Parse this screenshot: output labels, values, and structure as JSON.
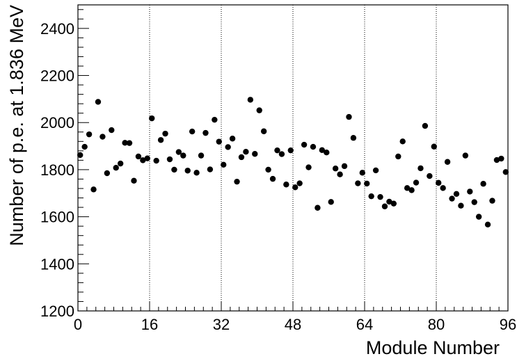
{
  "chart_data": {
    "type": "scatter",
    "xlabel": "Module Number",
    "ylabel": "Number of p.e. at 1.836 MeV",
    "xlim": [
      0,
      96
    ],
    "ylim": [
      1200,
      2500
    ],
    "x_ticks": [
      "0",
      "16",
      "32",
      "48",
      "64",
      "80",
      "96"
    ],
    "y_ticks": [
      "1200",
      "1400",
      "1600",
      "1800",
      "2000",
      "2200",
      "2400"
    ],
    "vertical_gridlines": [
      16,
      32,
      48,
      64,
      80
    ],
    "grid": "vertical dotted lines at x tick positions",
    "marker_color": "#000000",
    "points": [
      {
        "x": 0.5,
        "y": 1862
      },
      {
        "x": 1.5,
        "y": 1897
      },
      {
        "x": 2.5,
        "y": 1950
      },
      {
        "x": 3.5,
        "y": 1716
      },
      {
        "x": 4.5,
        "y": 2088
      },
      {
        "x": 5.5,
        "y": 1940
      },
      {
        "x": 6.5,
        "y": 1785
      },
      {
        "x": 7.5,
        "y": 1968
      },
      {
        "x": 8.5,
        "y": 1808
      },
      {
        "x": 9.5,
        "y": 1826
      },
      {
        "x": 10.5,
        "y": 1914
      },
      {
        "x": 11.5,
        "y": 1913
      },
      {
        "x": 12.5,
        "y": 1753
      },
      {
        "x": 13.5,
        "y": 1856
      },
      {
        "x": 14.5,
        "y": 1840
      },
      {
        "x": 15.5,
        "y": 1848
      },
      {
        "x": 16.5,
        "y": 2018
      },
      {
        "x": 17.5,
        "y": 1838
      },
      {
        "x": 18.5,
        "y": 1926
      },
      {
        "x": 19.5,
        "y": 1953
      },
      {
        "x": 20.5,
        "y": 1844
      },
      {
        "x": 21.5,
        "y": 1800
      },
      {
        "x": 22.5,
        "y": 1875
      },
      {
        "x": 23.5,
        "y": 1860
      },
      {
        "x": 24.5,
        "y": 1796
      },
      {
        "x": 25.5,
        "y": 1962
      },
      {
        "x": 26.5,
        "y": 1787
      },
      {
        "x": 27.5,
        "y": 1860
      },
      {
        "x": 28.5,
        "y": 1956
      },
      {
        "x": 29.5,
        "y": 1801
      },
      {
        "x": 30.5,
        "y": 2012
      },
      {
        "x": 31.5,
        "y": 1919
      },
      {
        "x": 32.5,
        "y": 1821
      },
      {
        "x": 33.5,
        "y": 1896
      },
      {
        "x": 34.5,
        "y": 1932
      },
      {
        "x": 35.5,
        "y": 1749
      },
      {
        "x": 36.5,
        "y": 1853
      },
      {
        "x": 37.5,
        "y": 1876
      },
      {
        "x": 38.5,
        "y": 2097
      },
      {
        "x": 39.5,
        "y": 1867
      },
      {
        "x": 40.5,
        "y": 2052
      },
      {
        "x": 41.5,
        "y": 1963
      },
      {
        "x": 42.5,
        "y": 1800
      },
      {
        "x": 43.5,
        "y": 1761
      },
      {
        "x": 44.5,
        "y": 1882
      },
      {
        "x": 45.5,
        "y": 1866
      },
      {
        "x": 46.5,
        "y": 1737
      },
      {
        "x": 47.5,
        "y": 1882
      },
      {
        "x": 48.5,
        "y": 1725
      },
      {
        "x": 49.5,
        "y": 1742
      },
      {
        "x": 50.5,
        "y": 1906
      },
      {
        "x": 51.5,
        "y": 1810
      },
      {
        "x": 52.5,
        "y": 1897
      },
      {
        "x": 53.5,
        "y": 1638
      },
      {
        "x": 54.5,
        "y": 1883
      },
      {
        "x": 55.5,
        "y": 1873
      },
      {
        "x": 56.5,
        "y": 1663
      },
      {
        "x": 57.5,
        "y": 1805
      },
      {
        "x": 58.5,
        "y": 1780
      },
      {
        "x": 59.5,
        "y": 1815
      },
      {
        "x": 60.5,
        "y": 2024
      },
      {
        "x": 61.5,
        "y": 1935
      },
      {
        "x": 62.5,
        "y": 1742
      },
      {
        "x": 63.5,
        "y": 1787
      },
      {
        "x": 64.5,
        "y": 1741
      },
      {
        "x": 65.5,
        "y": 1687
      },
      {
        "x": 66.5,
        "y": 1797
      },
      {
        "x": 67.5,
        "y": 1684
      },
      {
        "x": 68.5,
        "y": 1644
      },
      {
        "x": 69.5,
        "y": 1664
      },
      {
        "x": 70.5,
        "y": 1656
      },
      {
        "x": 71.5,
        "y": 1856
      },
      {
        "x": 72.5,
        "y": 1920
      },
      {
        "x": 73.5,
        "y": 1722
      },
      {
        "x": 74.5,
        "y": 1713
      },
      {
        "x": 75.5,
        "y": 1745
      },
      {
        "x": 76.5,
        "y": 1806
      },
      {
        "x": 77.5,
        "y": 1986
      },
      {
        "x": 78.5,
        "y": 1773
      },
      {
        "x": 79.5,
        "y": 1898
      },
      {
        "x": 80.5,
        "y": 1744
      },
      {
        "x": 81.5,
        "y": 1722
      },
      {
        "x": 82.5,
        "y": 1833
      },
      {
        "x": 83.5,
        "y": 1677
      },
      {
        "x": 84.5,
        "y": 1697
      },
      {
        "x": 85.5,
        "y": 1647
      },
      {
        "x": 86.5,
        "y": 1860
      },
      {
        "x": 87.5,
        "y": 1707
      },
      {
        "x": 88.5,
        "y": 1662
      },
      {
        "x": 89.5,
        "y": 1600
      },
      {
        "x": 90.5,
        "y": 1740
      },
      {
        "x": 91.5,
        "y": 1567
      },
      {
        "x": 92.5,
        "y": 1668
      },
      {
        "x": 93.5,
        "y": 1841
      },
      {
        "x": 94.5,
        "y": 1847
      },
      {
        "x": 95.5,
        "y": 1790
      }
    ]
  }
}
